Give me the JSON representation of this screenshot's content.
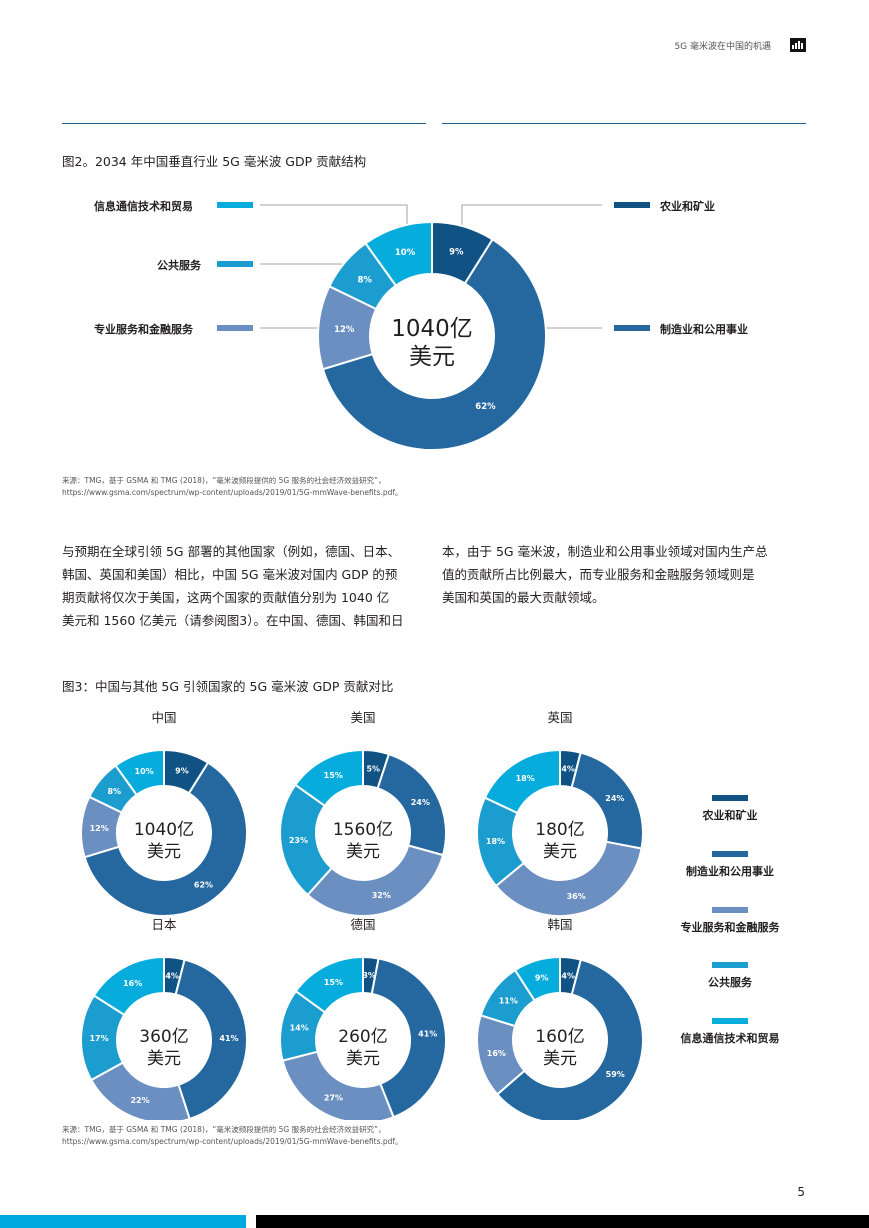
{
  "header": {
    "title": "5G 毫米波在中国的机遇"
  },
  "page_number": "5",
  "colors": {
    "agri": "#0f5283",
    "manu": "#2568a0",
    "prof": "#6b8fc1",
    "public": "#1b9dcf",
    "ict": "#05acdc"
  },
  "figure2": {
    "title": "图2。2034 年中国垂直行业 5G 毫米波 GDP 贡献结构",
    "center_line1": "1040亿",
    "center_line2": "美元",
    "legend": {
      "ict": "信息通信技术和贸易",
      "public": "公共服务",
      "prof": "专业服务和金融服务",
      "agri": "农业和矿业",
      "manu": "制造业和公用事业"
    },
    "source_line1": "来源：TMG，基于 GSMA 和 TMG (2018)，“毫米波频段提供的 5G 服务的社会经济效益研究”，",
    "source_line2": "https://www.gsma.com/spectrum/wp-content/uploads/2019/01/5G-mmWave-benefits.pdf。"
  },
  "paragraph": {
    "left": [
      "与预期在全球引领 5G 部署的其他国家（例如，德国、日本、",
      "韩国、英国和美国）相比，中国 5G 毫米波对国内 GDP 的预",
      "期贡献将仅次于美国，这两个国家的贡献值分别为 1040 亿",
      "美元和 1560 亿美元（请参阅图3）。在中国、德国、韩国和日"
    ],
    "right": [
      "本，由于 5G 毫米波，制造业和公用事业领域对国内生产总",
      "值的贡献所占比例最大，而专业服务和金融服务领域则是",
      "美国和英国的最大贡献领域。"
    ]
  },
  "figure3": {
    "title": "图3：中国与其他 5G 引领国家的 5G 毫米波 GDP 贡献对比",
    "legend": [
      "农业和矿业",
      "制造业和公用事业",
      "专业服务和金融服务",
      "公共服务",
      "信息通信技术和贸易"
    ],
    "source_line1": "来源：TMG，基于 GSMA 和 TMG (2018)，“毫米波频段提供的 5G 服务的社会经济效益研究”，",
    "source_line2": "https://www.gsma.com/spectrum/wp-content/uploads/2019/01/5G-mmWave-benefits.pdf。"
  },
  "chart_data": [
    {
      "type": "pie",
      "title": "图2。2034 年中国垂直行业 5G 毫米波 GDP 贡献结构",
      "center_text": "1040亿 美元",
      "categories": [
        "农业和矿业",
        "制造业和公用事业",
        "专业服务和金融服务",
        "公共服务",
        "信息通信技术和贸易"
      ],
      "values": [
        9,
        62,
        12,
        8,
        10
      ]
    },
    {
      "type": "pie",
      "title": "中国",
      "center_line1": "1040亿",
      "center_line2": "美元",
      "values": [
        9,
        62,
        12,
        8,
        10
      ]
    },
    {
      "type": "pie",
      "title": "美国",
      "center_line1": "1560亿",
      "center_line2": "美元",
      "values": [
        5,
        24,
        32,
        23,
        15
      ]
    },
    {
      "type": "pie",
      "title": "英国",
      "center_line1": "180亿",
      "center_line2": "美元",
      "values": [
        4,
        24,
        36,
        18,
        18
      ]
    },
    {
      "type": "pie",
      "title": "日本",
      "center_line1": "360亿",
      "center_line2": "美元",
      "values": [
        4,
        41,
        22,
        17,
        16
      ]
    },
    {
      "type": "pie",
      "title": "德国",
      "center_line1": "260亿",
      "center_line2": "美元",
      "values": [
        3,
        41,
        27,
        14,
        15
      ]
    },
    {
      "type": "pie",
      "title": "韩国",
      "center_line1": "160亿",
      "center_line2": "美元",
      "values": [
        4,
        59,
        16,
        11,
        9
      ]
    }
  ]
}
